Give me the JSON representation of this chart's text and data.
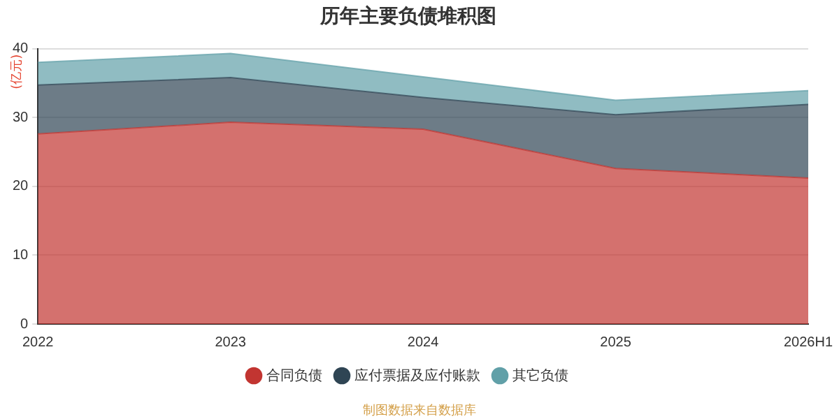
{
  "chart_data": {
    "type": "area",
    "title": "历年主要负债堆积图",
    "ylabel": "(亿元)",
    "categories": [
      "2022",
      "2023",
      "2024",
      "2025",
      "2026H1"
    ],
    "stacked": true,
    "series": [
      {
        "name": "合同负债",
        "color": "#c23531",
        "values": [
          27.6,
          29.3,
          28.3,
          22.6,
          21.2
        ]
      },
      {
        "name": "应付票据及应付账款",
        "color": "#2f4554",
        "values": [
          7.1,
          6.5,
          4.6,
          7.8,
          10.7
        ]
      },
      {
        "name": "其它负债",
        "color": "#61a0a8",
        "values": [
          3.3,
          3.5,
          3.0,
          2.1,
          2.0
        ]
      }
    ],
    "ylim": [
      0,
      40
    ],
    "yticks": [
      0,
      10,
      20,
      30,
      40
    ],
    "grid": "y",
    "legend": "bottom",
    "marker": "none",
    "annotations": [
      "制图数据来自数据库"
    ]
  }
}
